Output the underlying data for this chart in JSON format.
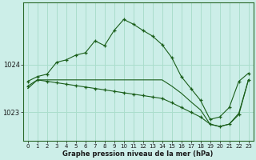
{
  "title": "Graphe pression niveau de la mer (hPa)",
  "bg_color": "#cceee8",
  "grid_color": "#aaddcc",
  "line_color": "#1a5e1a",
  "ylim": [
    1022.4,
    1025.3
  ],
  "yticks": [
    1023,
    1024
  ],
  "xlim": [
    -0.5,
    23.5
  ],
  "xticks": [
    0,
    1,
    2,
    3,
    4,
    5,
    6,
    7,
    8,
    9,
    10,
    11,
    12,
    13,
    14,
    15,
    16,
    17,
    18,
    19,
    20,
    21,
    22,
    23
  ],
  "series1_x": [
    0,
    1,
    2,
    3,
    4,
    5,
    6,
    7,
    8,
    9,
    10,
    11,
    12,
    13,
    14,
    15,
    16,
    17,
    18,
    19,
    20,
    21,
    22,
    23
  ],
  "series1_y": [
    1023.65,
    1023.75,
    1023.8,
    1024.05,
    1024.1,
    1024.2,
    1024.25,
    1024.5,
    1024.4,
    1024.72,
    1024.95,
    1024.85,
    1024.72,
    1024.6,
    1024.42,
    1024.15,
    1023.75,
    1023.5,
    1023.25,
    1022.85,
    1022.9,
    1023.1,
    1023.65,
    1023.82
  ],
  "series2_x": [
    0,
    1,
    2,
    3,
    4,
    5,
    6,
    7,
    8,
    9,
    10,
    11,
    12,
    13,
    14,
    15,
    16,
    17,
    18,
    19,
    20,
    21,
    22,
    23
  ],
  "series2_y": [
    1023.55,
    1023.68,
    1023.65,
    1023.62,
    1023.59,
    1023.56,
    1023.53,
    1023.5,
    1023.47,
    1023.44,
    1023.41,
    1023.38,
    1023.35,
    1023.32,
    1023.29,
    1023.2,
    1023.1,
    1023.0,
    1022.9,
    1022.75,
    1022.7,
    1022.75,
    1022.95,
    1023.68
  ],
  "series3_x": [
    0,
    1,
    2,
    3,
    4,
    5,
    6,
    7,
    8,
    9,
    10,
    11,
    12,
    13,
    14,
    15,
    16,
    17,
    18,
    19,
    20,
    21,
    22,
    23
  ],
  "series3_y": [
    1023.5,
    1023.68,
    1023.68,
    1023.68,
    1023.68,
    1023.68,
    1023.68,
    1023.68,
    1023.68,
    1023.68,
    1023.68,
    1023.68,
    1023.68,
    1023.68,
    1023.68,
    1023.55,
    1023.4,
    1023.22,
    1023.05,
    1022.75,
    1022.7,
    1022.75,
    1022.98,
    1023.68
  ]
}
